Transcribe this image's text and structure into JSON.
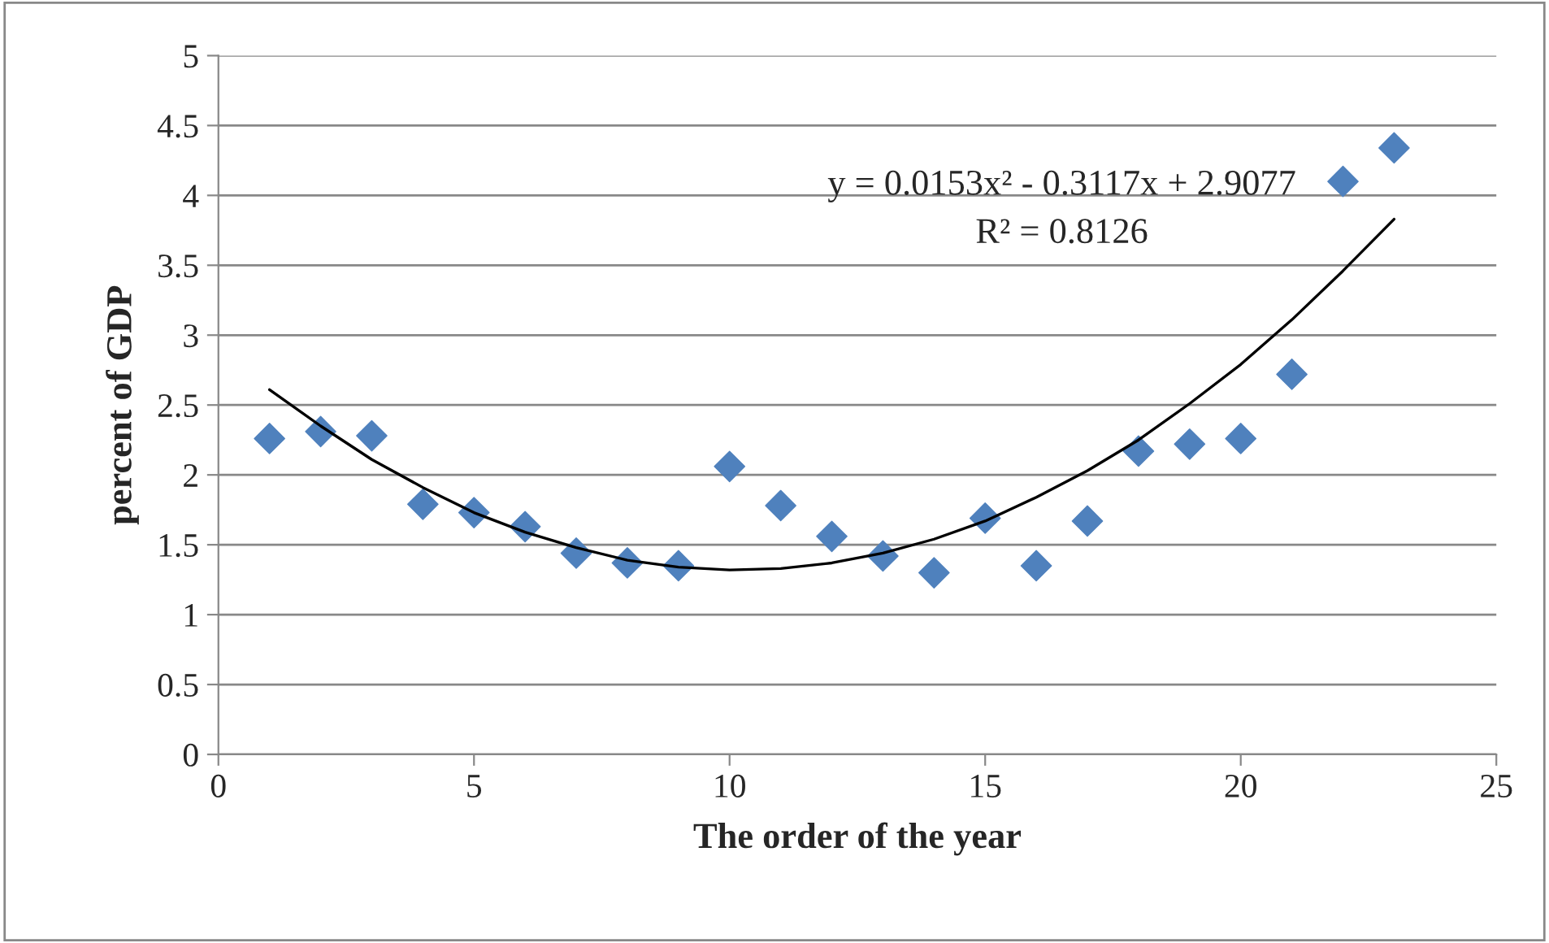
{
  "chart_data": {
    "type": "scatter",
    "xlabel": "The order of the year",
    "ylabel": "percent of GDP",
    "x": [
      1,
      2,
      3,
      4,
      5,
      6,
      7,
      8,
      9,
      10,
      11,
      12,
      13,
      14,
      15,
      16,
      17,
      18,
      19,
      20,
      21,
      22,
      23
    ],
    "series": [
      {
        "color": "#4f81bd",
        "marker": "diamond",
        "values": [
          2.26,
          2.31,
          2.28,
          1.79,
          1.73,
          1.63,
          1.44,
          1.37,
          1.35,
          2.06,
          1.78,
          1.56,
          1.42,
          1.3,
          1.69,
          1.35,
          1.67,
          2.17,
          2.22,
          2.26,
          2.72,
          4.1,
          4.34
        ]
      },
      {
        "type": "line",
        "color": "#000000",
        "marker": "none",
        "line_style": "solid",
        "x": [
          1,
          2,
          3,
          4,
          5,
          6,
          7,
          8,
          9,
          10,
          11,
          12,
          13,
          14,
          15,
          16,
          17,
          18,
          19,
          20,
          21,
          22,
          23
        ],
        "values": [
          2.61,
          2.35,
          2.11,
          1.91,
          1.73,
          1.59,
          1.48,
          1.39,
          1.34,
          1.32,
          1.33,
          1.37,
          1.44,
          1.54,
          1.67,
          1.84,
          2.03,
          2.25,
          2.51,
          2.79,
          3.11,
          3.46,
          3.83
        ]
      }
    ],
    "annotations": [
      "y = 0.0153x² - 0.3117x + 2.9077",
      "R² = 0.8126"
    ],
    "xlim": [
      0,
      25
    ],
    "xticks": [
      0,
      5,
      10,
      15,
      20,
      25
    ],
    "ylim": [
      0,
      5
    ],
    "yticks": [
      0,
      0.5,
      1,
      1.5,
      2,
      2.5,
      3,
      3.5,
      4,
      4.5,
      5
    ],
    "grid": "y",
    "legend": false
  }
}
